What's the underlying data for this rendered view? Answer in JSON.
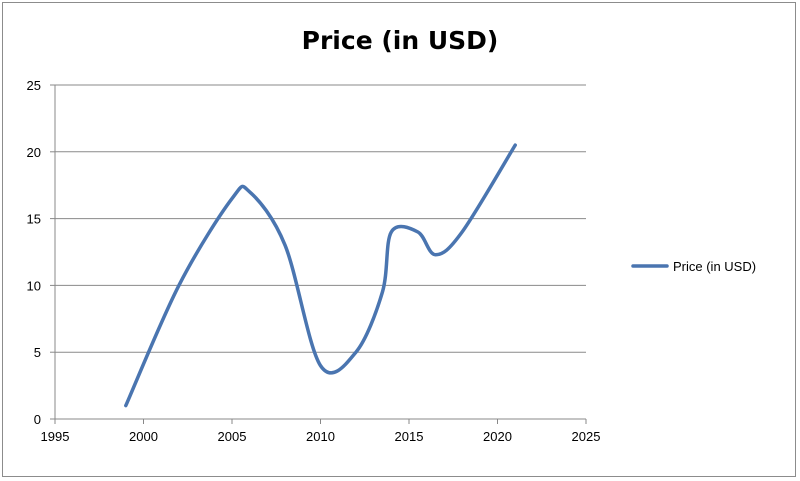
{
  "chart_data": {
    "type": "line",
    "title": "Price (in USD)",
    "xlabel": "",
    "ylabel": "",
    "xlim": [
      1995,
      2025
    ],
    "ylim": [
      0,
      25
    ],
    "x_ticks": [
      1995,
      2000,
      2005,
      2010,
      2015,
      2020,
      2025
    ],
    "y_ticks": [
      0,
      5,
      10,
      15,
      20,
      25
    ],
    "grid": "horizontal",
    "legend_position": "right",
    "smooth": true,
    "series": [
      {
        "name": "Price (in USD)",
        "color": "#4a75b0",
        "x": [
          1999,
          2002,
          2005,
          2006,
          2008,
          2010,
          2012,
          2013.5,
          2014,
          2015.5,
          2016.5,
          2018,
          2021
        ],
        "y": [
          1,
          10,
          16.5,
          17,
          13,
          4,
          5,
          9.5,
          14,
          14,
          12.3,
          14,
          20.5
        ]
      }
    ]
  }
}
